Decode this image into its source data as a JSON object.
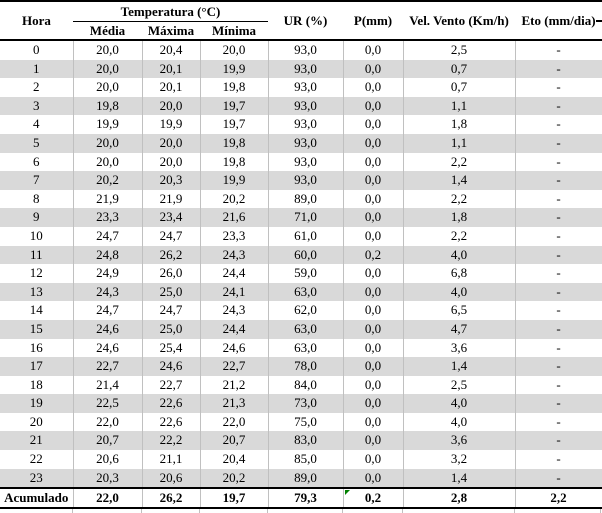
{
  "chart_data": {
    "type": "table",
    "header": {
      "hora": "Hora",
      "temperatura_group": "Temperatura (°C)",
      "sub": [
        "Média",
        "Máxima",
        "Mínima"
      ],
      "ur": "UR (%)",
      "p": "P(mm)",
      "vel": "Vel. Vento (Km/h)",
      "eto": "Eto (mm/dia)"
    },
    "rows": [
      [
        "0",
        "20,0",
        "20,4",
        "20,0",
        "93,0",
        "0,0",
        "2,5",
        "-"
      ],
      [
        "1",
        "20,0",
        "20,1",
        "19,9",
        "93,0",
        "0,0",
        "0,7",
        "-"
      ],
      [
        "2",
        "20,0",
        "20,1",
        "19,8",
        "93,0",
        "0,0",
        "0,7",
        "-"
      ],
      [
        "3",
        "19,8",
        "20,0",
        "19,7",
        "93,0",
        "0,0",
        "1,1",
        "-"
      ],
      [
        "4",
        "19,9",
        "19,9",
        "19,7",
        "93,0",
        "0,0",
        "1,8",
        "-"
      ],
      [
        "5",
        "20,0",
        "20,0",
        "19,8",
        "93,0",
        "0,0",
        "1,1",
        "-"
      ],
      [
        "6",
        "20,0",
        "20,0",
        "19,8",
        "93,0",
        "0,0",
        "2,2",
        "-"
      ],
      [
        "7",
        "20,2",
        "20,3",
        "19,9",
        "93,0",
        "0,0",
        "1,4",
        "-"
      ],
      [
        "8",
        "21,9",
        "21,9",
        "20,2",
        "89,0",
        "0,0",
        "2,2",
        "-"
      ],
      [
        "9",
        "23,3",
        "23,4",
        "21,6",
        "71,0",
        "0,0",
        "1,8",
        "-"
      ],
      [
        "10",
        "24,7",
        "24,7",
        "23,3",
        "61,0",
        "0,0",
        "2,2",
        "-"
      ],
      [
        "11",
        "24,8",
        "26,2",
        "24,3",
        "60,0",
        "0,2",
        "4,0",
        "-"
      ],
      [
        "12",
        "24,9",
        "26,0",
        "24,4",
        "59,0",
        "0,0",
        "6,8",
        "-"
      ],
      [
        "13",
        "24,3",
        "25,0",
        "24,1",
        "63,0",
        "0,0",
        "4,0",
        "-"
      ],
      [
        "14",
        "24,7",
        "24,7",
        "24,3",
        "62,0",
        "0,0",
        "6,5",
        "-"
      ],
      [
        "15",
        "24,6",
        "25,0",
        "24,4",
        "63,0",
        "0,0",
        "4,7",
        "-"
      ],
      [
        "16",
        "24,6",
        "25,4",
        "24,6",
        "63,0",
        "0,0",
        "3,6",
        "-"
      ],
      [
        "17",
        "22,7",
        "24,6",
        "22,7",
        "78,0",
        "0,0",
        "1,4",
        "-"
      ],
      [
        "18",
        "21,4",
        "22,7",
        "21,2",
        "84,0",
        "0,0",
        "2,5",
        "-"
      ],
      [
        "19",
        "22,5",
        "22,6",
        "21,3",
        "73,0",
        "0,0",
        "4,0",
        "-"
      ],
      [
        "20",
        "22,0",
        "22,6",
        "22,0",
        "75,0",
        "0,0",
        "4,0",
        "-"
      ],
      [
        "21",
        "20,7",
        "22,2",
        "20,7",
        "83,0",
        "0,0",
        "3,6",
        "-"
      ],
      [
        "22",
        "20,6",
        "21,1",
        "20,4",
        "85,0",
        "0,0",
        "3,2",
        "-"
      ],
      [
        "23",
        "20,3",
        "20,6",
        "20,2",
        "89,0",
        "0,0",
        "1,4",
        "-"
      ]
    ],
    "footer": [
      "Acumulado",
      "22,0",
      "26,2",
      "19,7",
      "79,3",
      "0,2",
      "2,8",
      "2,2"
    ]
  },
  "colors": {
    "row_stripe": "#d9d9d9",
    "gridline": "#c0c0c0",
    "table_border": "#000000",
    "cell_flag_green": "#008000"
  }
}
